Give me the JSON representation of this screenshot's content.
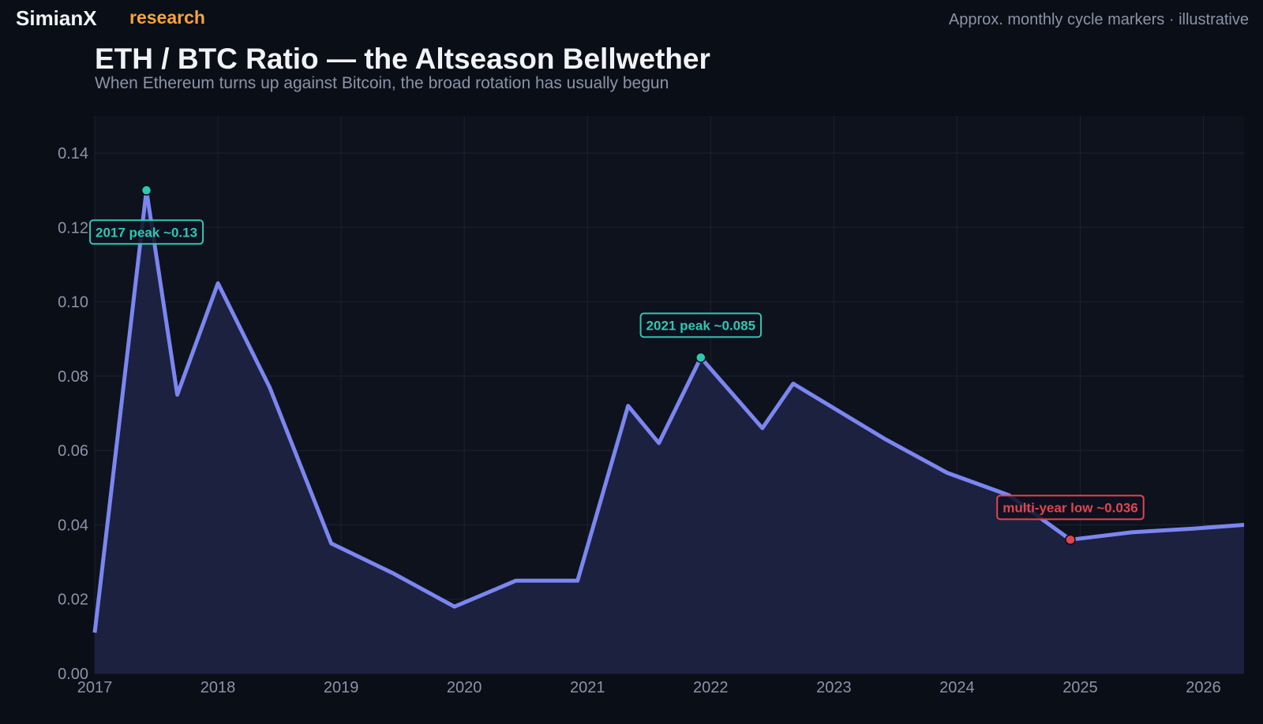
{
  "header": {
    "brand": "SimianX",
    "brand_sub": "research",
    "note": "Approx. monthly cycle markers · illustrative"
  },
  "colors": {
    "line": "#7b86f0",
    "fill": "#1c2140",
    "peak": "#2ec8b0",
    "low": "#e0454f",
    "plot_bg": "#0e121d",
    "grid": "#1c2231"
  },
  "chart_data": {
    "type": "area",
    "title": "ETH / BTC Ratio — the Altseason Bellwether",
    "subtitle": "When Ethereum turns up against Bitcoin, the broad rotation has usually begun",
    "xlabel": "",
    "ylabel": "",
    "xlim": [
      2017.0,
      2026.33
    ],
    "ylim": [
      0,
      0.15
    ],
    "grid": true,
    "x_ticks": [
      2017,
      2018,
      2019,
      2020,
      2021,
      2022,
      2023,
      2024,
      2025,
      2026
    ],
    "x_tick_labels": [
      "2017",
      "2018",
      "2019",
      "2020",
      "2021",
      "2022",
      "2023",
      "2024",
      "2025",
      "2026"
    ],
    "y_ticks": [
      0,
      0.02,
      0.04,
      0.06,
      0.08,
      0.1,
      0.12,
      0.14
    ],
    "y_tick_labels": [
      "0.00",
      "0.02",
      "0.04",
      "0.06",
      "0.08",
      "0.10",
      "0.12",
      "0.14"
    ],
    "series": [
      {
        "x": [
          2017.0,
          2017.42,
          2017.67,
          2018.0,
          2018.42,
          2018.92,
          2019.42,
          2019.92,
          2020.42,
          2020.92,
          2021.33,
          2021.58,
          2021.92,
          2022.42,
          2022.67,
          2023.42,
          2023.92,
          2024.42,
          2024.92,
          2025.42,
          2025.92,
          2026.33
        ],
        "y": [
          0.011,
          0.13,
          0.075,
          0.105,
          0.077,
          0.035,
          0.027,
          0.018,
          0.025,
          0.025,
          0.072,
          0.062,
          0.085,
          0.066,
          0.078,
          0.063,
          0.054,
          0.048,
          0.036,
          0.038,
          0.039,
          0.04
        ]
      }
    ],
    "annotations": [
      {
        "label": "2017 peak ~0.13",
        "x": 2017.42,
        "y": 0.13,
        "kind": "peak",
        "placement": "below"
      },
      {
        "label": "2021 peak ~0.085",
        "x": 2021.92,
        "y": 0.085,
        "kind": "peak",
        "placement": "above"
      },
      {
        "label": "multi-year low ~0.036",
        "x": 2024.92,
        "y": 0.036,
        "kind": "low",
        "placement": "above"
      }
    ]
  }
}
